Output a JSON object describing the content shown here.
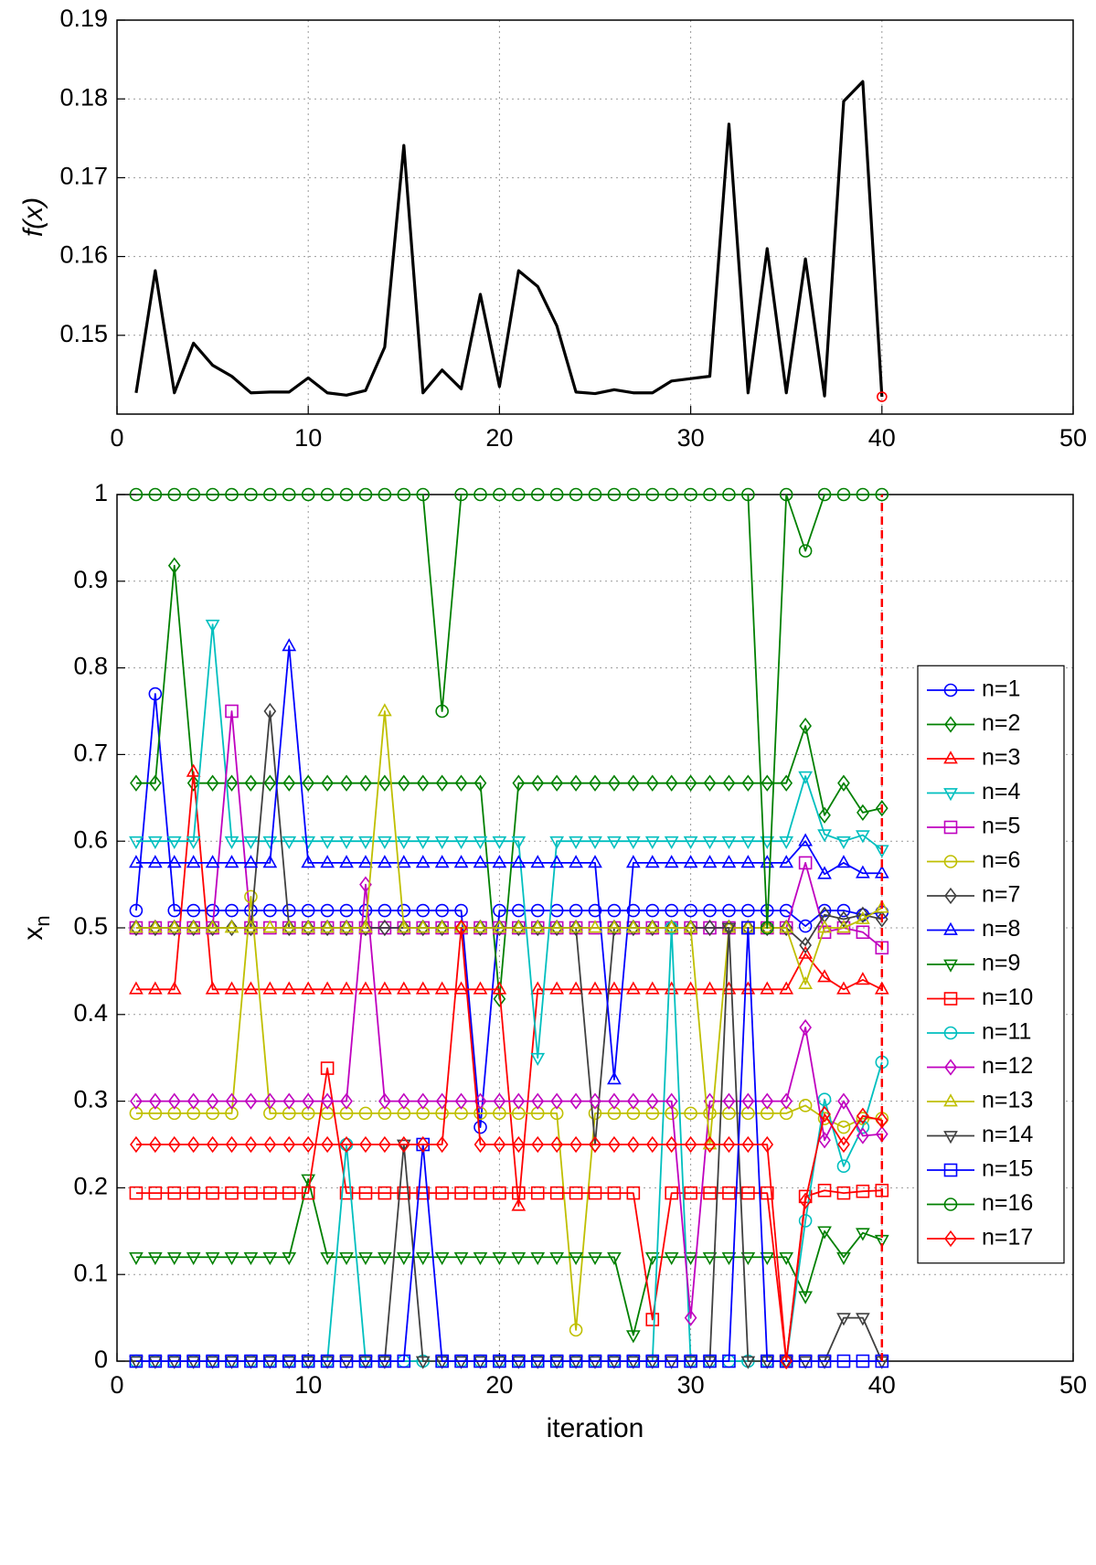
{
  "chart_data": [
    {
      "type": "line",
      "ylabel": "f(x)",
      "x": [
        1,
        2,
        3,
        4,
        5,
        6,
        7,
        8,
        9,
        10,
        11,
        12,
        13,
        14,
        15,
        16,
        17,
        18,
        19,
        20,
        21,
        22,
        23,
        24,
        25,
        26,
        27,
        28,
        29,
        30,
        31,
        32,
        33,
        34,
        35,
        36,
        37,
        38,
        39,
        40
      ],
      "series": [
        {
          "color": "#000000",
          "values": [
            0.1427,
            0.1582,
            0.1427,
            0.149,
            0.1462,
            0.1448,
            0.1427,
            0.1428,
            0.1428,
            0.1446,
            0.1427,
            0.1424,
            0.143,
            0.1485,
            0.1741,
            0.1427,
            0.1456,
            0.1432,
            0.1552,
            0.1435,
            0.1582,
            0.1562,
            0.1512,
            0.1428,
            0.1426,
            0.1431,
            0.1427,
            0.1427,
            0.1442,
            0.1445,
            0.1448,
            0.1768,
            0.1427,
            0.161,
            0.1427,
            0.1597,
            0.1423,
            0.1797,
            0.1822,
            0.1422
          ]
        }
      ],
      "best": {
        "x": 40,
        "value": 0.1422,
        "color": "#ff0000"
      },
      "xlim": [
        0,
        50
      ],
      "xticks": [
        0,
        10,
        20,
        30,
        40,
        50
      ],
      "ylim": [
        0.14,
        0.19
      ],
      "yticks": [
        0.15,
        0.16,
        0.17,
        0.18,
        0.19
      ],
      "grid": true
    },
    {
      "type": "line",
      "xlabel": "iteration",
      "ylabel": "x",
      "ylabel_sub": "n",
      "x": [
        1,
        2,
        3,
        4,
        5,
        6,
        7,
        8,
        9,
        10,
        11,
        12,
        13,
        14,
        15,
        16,
        17,
        18,
        19,
        20,
        21,
        22,
        23,
        24,
        25,
        26,
        27,
        28,
        29,
        30,
        31,
        32,
        33,
        34,
        35,
        36,
        37,
        38,
        39,
        40
      ],
      "series": [
        {
          "name": "n=1",
          "color": "#0000ff",
          "marker": "o",
          "values": [
            0.52,
            0.77,
            0.52,
            0.52,
            0.52,
            0.52,
            0.52,
            0.52,
            0.52,
            0.52,
            0.52,
            0.52,
            0.52,
            0.52,
            0.52,
            0.52,
            0.52,
            0.52,
            0.27,
            0.52,
            0.52,
            0.52,
            0.52,
            0.52,
            0.52,
            0.52,
            0.52,
            0.52,
            0.52,
            0.52,
            0.52,
            0.52,
            0.52,
            0.52,
            0.52,
            0.502,
            0.52,
            0.52,
            0.515,
            0.518
          ]
        },
        {
          "name": "n=2",
          "color": "#008000",
          "marker": "d",
          "values": [
            0.667,
            0.667,
            0.918,
            0.667,
            0.667,
            0.667,
            0.667,
            0.667,
            0.667,
            0.667,
            0.667,
            0.667,
            0.667,
            0.667,
            0.667,
            0.667,
            0.667,
            0.667,
            0.667,
            0.418,
            0.667,
            0.667,
            0.667,
            0.667,
            0.667,
            0.667,
            0.667,
            0.667,
            0.667,
            0.667,
            0.667,
            0.667,
            0.667,
            0.667,
            0.667,
            0.733,
            0.63,
            0.667,
            0.633,
            0.638
          ]
        },
        {
          "name": "n=3",
          "color": "#ff0000",
          "marker": "^",
          "values": [
            0.429,
            0.429,
            0.429,
            0.68,
            0.429,
            0.429,
            0.429,
            0.429,
            0.429,
            0.429,
            0.429,
            0.429,
            0.429,
            0.429,
            0.429,
            0.429,
            0.429,
            0.429,
            0.429,
            0.429,
            0.179,
            0.429,
            0.429,
            0.429,
            0.429,
            0.429,
            0.429,
            0.429,
            0.429,
            0.429,
            0.429,
            0.429,
            0.429,
            0.429,
            0.429,
            0.47,
            0.443,
            0.429,
            0.44,
            0.429
          ]
        },
        {
          "name": "n=4",
          "color": "#00bfbf",
          "marker": "v",
          "values": [
            0.6,
            0.6,
            0.6,
            0.6,
            0.85,
            0.6,
            0.6,
            0.6,
            0.6,
            0.6,
            0.6,
            0.6,
            0.6,
            0.6,
            0.6,
            0.6,
            0.6,
            0.6,
            0.6,
            0.6,
            0.6,
            0.35,
            0.6,
            0.6,
            0.6,
            0.6,
            0.6,
            0.6,
            0.6,
            0.6,
            0.6,
            0.6,
            0.6,
            0.6,
            0.6,
            0.675,
            0.608,
            0.6,
            0.607,
            0.59
          ]
        },
        {
          "name": "n=5",
          "color": "#bf00bf",
          "marker": "s",
          "values": [
            0.5,
            0.5,
            0.5,
            0.5,
            0.5,
            0.75,
            0.5,
            0.5,
            0.5,
            0.5,
            0.5,
            0.5,
            0.5,
            0.5,
            0.5,
            0.5,
            0.5,
            0.5,
            0.5,
            0.5,
            0.5,
            0.5,
            0.5,
            0.5,
            0.5,
            0.5,
            0.5,
            0.5,
            0.5,
            0.5,
            0.5,
            0.5,
            0.5,
            0.5,
            0.5,
            0.575,
            0.495,
            0.5,
            0.495,
            0.477
          ]
        },
        {
          "name": "n=6",
          "color": "#bfbf00",
          "marker": "o",
          "values": [
            0.286,
            0.286,
            0.286,
            0.286,
            0.286,
            0.286,
            0.536,
            0.286,
            0.286,
            0.286,
            0.286,
            0.286,
            0.286,
            0.286,
            0.286,
            0.286,
            0.286,
            0.286,
            0.286,
            0.286,
            0.286,
            0.286,
            0.286,
            0.036,
            0.286,
            0.286,
            0.286,
            0.286,
            0.286,
            0.286,
            0.286,
            0.286,
            0.286,
            0.286,
            0.286,
            0.295,
            0.28,
            0.27,
            0.28,
            0.28
          ]
        },
        {
          "name": "n=7",
          "color": "#404040",
          "marker": "d",
          "values": [
            0.5,
            0.5,
            0.5,
            0.5,
            0.5,
            0.5,
            0.5,
            0.75,
            0.5,
            0.5,
            0.5,
            0.5,
            0.5,
            0.5,
            0.5,
            0.5,
            0.5,
            0.5,
            0.5,
            0.5,
            0.5,
            0.5,
            0.5,
            0.5,
            0.25,
            0.5,
            0.5,
            0.5,
            0.5,
            0.5,
            0.5,
            0.5,
            0.5,
            0.5,
            0.5,
            0.48,
            0.515,
            0.51,
            0.515,
            0.51
          ]
        },
        {
          "name": "n=8",
          "color": "#0000ff",
          "marker": "^",
          "values": [
            0.575,
            0.575,
            0.575,
            0.575,
            0.575,
            0.575,
            0.575,
            0.575,
            0.825,
            0.575,
            0.575,
            0.575,
            0.575,
            0.575,
            0.575,
            0.575,
            0.575,
            0.575,
            0.575,
            0.575,
            0.575,
            0.575,
            0.575,
            0.575,
            0.575,
            0.325,
            0.575,
            0.575,
            0.575,
            0.575,
            0.575,
            0.575,
            0.575,
            0.575,
            0.575,
            0.6,
            0.562,
            0.575,
            0.563,
            0.563
          ]
        },
        {
          "name": "n=9",
          "color": "#008000",
          "marker": "v",
          "values": [
            0.12,
            0.12,
            0.12,
            0.12,
            0.12,
            0.12,
            0.12,
            0.12,
            0.12,
            0.21,
            0.12,
            0.12,
            0.12,
            0.12,
            0.12,
            0.12,
            0.12,
            0.12,
            0.12,
            0.12,
            0.12,
            0.12,
            0.12,
            0.12,
            0.12,
            0.12,
            0.03,
            0.12,
            0.12,
            0.12,
            0.12,
            0.12,
            0.12,
            0.12,
            0.12,
            0.075,
            0.15,
            0.12,
            0.148,
            0.14
          ]
        },
        {
          "name": "n=10",
          "color": "#ff0000",
          "marker": "s",
          "values": [
            0.194,
            0.194,
            0.194,
            0.194,
            0.194,
            0.194,
            0.194,
            0.194,
            0.194,
            0.194,
            0.338,
            0.194,
            0.194,
            0.194,
            0.194,
            0.194,
            0.194,
            0.194,
            0.194,
            0.194,
            0.194,
            0.194,
            0.194,
            0.194,
            0.194,
            0.194,
            0.194,
            0.048,
            0.194,
            0.194,
            0.194,
            0.194,
            0.194,
            0.194,
            0,
            0.19,
            0.197,
            0.194,
            0.196,
            0.197
          ]
        },
        {
          "name": "n=11",
          "color": "#00bfbf",
          "marker": "o",
          "values": [
            0,
            0,
            0,
            0,
            0,
            0,
            0,
            0,
            0,
            0,
            0,
            0.25,
            0,
            0,
            0,
            0,
            0,
            0,
            0,
            0,
            0,
            0,
            0,
            0,
            0,
            0,
            0,
            0,
            0.5,
            0,
            0,
            0,
            0,
            0,
            0,
            0.162,
            0.302,
            0.225,
            0.27,
            0.345
          ]
        },
        {
          "name": "n=12",
          "color": "#bf00bf",
          "marker": "d",
          "values": [
            0.3,
            0.3,
            0.3,
            0.3,
            0.3,
            0.3,
            0.3,
            0.3,
            0.3,
            0.3,
            0.3,
            0.3,
            0.55,
            0.3,
            0.3,
            0.3,
            0.3,
            0.3,
            0.3,
            0.3,
            0.3,
            0.3,
            0.3,
            0.3,
            0.3,
            0.3,
            0.3,
            0.3,
            0.3,
            0.05,
            0.3,
            0.3,
            0.3,
            0.3,
            0.3,
            0.385,
            0.255,
            0.3,
            0.26,
            0.262
          ]
        },
        {
          "name": "n=13",
          "color": "#bfbf00",
          "marker": "^",
          "values": [
            0.5,
            0.5,
            0.5,
            0.5,
            0.5,
            0.5,
            0.5,
            0.5,
            0.5,
            0.5,
            0.5,
            0.5,
            0.5,
            0.75,
            0.5,
            0.5,
            0.5,
            0.5,
            0.5,
            0.5,
            0.5,
            0.5,
            0.5,
            0.5,
            0.5,
            0.5,
            0.5,
            0.5,
            0.5,
            0.5,
            0.25,
            0.5,
            0.5,
            0.5,
            0.5,
            0.435,
            0.5,
            0.5,
            0.51,
            0.523
          ]
        },
        {
          "name": "n=14",
          "color": "#404040",
          "marker": "v",
          "values": [
            0,
            0,
            0,
            0,
            0,
            0,
            0,
            0,
            0,
            0,
            0,
            0,
            0,
            0,
            0.25,
            0,
            0,
            0,
            0,
            0,
            0,
            0,
            0,
            0,
            0,
            0,
            0,
            0,
            0,
            0,
            0,
            0.5,
            0,
            0,
            0,
            0,
            0,
            0.05,
            0.05,
            0
          ]
        },
        {
          "name": "n=15",
          "color": "#0000ff",
          "marker": "s",
          "values": [
            0,
            0,
            0,
            0,
            0,
            0,
            0,
            0,
            0,
            0,
            0,
            0,
            0,
            0,
            0,
            0.25,
            0,
            0,
            0,
            0,
            0,
            0,
            0,
            0,
            0,
            0,
            0,
            0,
            0,
            0,
            0,
            0,
            0.5,
            0,
            0,
            0,
            0,
            0,
            0,
            0
          ]
        },
        {
          "name": "n=16",
          "color": "#008000",
          "marker": "o",
          "values": [
            1,
            1,
            1,
            1,
            1,
            1,
            1,
            1,
            1,
            1,
            1,
            1,
            1,
            1,
            1,
            1,
            0.75,
            1,
            1,
            1,
            1,
            1,
            1,
            1,
            1,
            1,
            1,
            1,
            1,
            1,
            1,
            1,
            1,
            0.5,
            1,
            0.935,
            1,
            1,
            1,
            1
          ]
        },
        {
          "name": "n=17",
          "color": "#ff0000",
          "marker": "d",
          "values": [
            0.25,
            0.25,
            0.25,
            0.25,
            0.25,
            0.25,
            0.25,
            0.25,
            0.25,
            0.25,
            0.25,
            0.25,
            0.25,
            0.25,
            0.25,
            0.25,
            0.25,
            0.5,
            0.25,
            0.25,
            0.25,
            0.25,
            0.25,
            0.25,
            0.25,
            0.25,
            0.25,
            0.25,
            0.25,
            0.25,
            0.25,
            0.25,
            0.25,
            0.25,
            0,
            0.185,
            0.285,
            0.25,
            0.283,
            0.278
          ]
        }
      ],
      "vline": {
        "x": 40,
        "color": "#ff0000"
      },
      "xlim": [
        0,
        50
      ],
      "xticks": [
        0,
        10,
        20,
        30,
        40,
        50
      ],
      "ylim": [
        0,
        1
      ],
      "yticks": [
        0,
        0.1,
        0.2,
        0.3,
        0.4,
        0.5,
        0.6,
        0.7,
        0.8,
        0.9,
        1
      ],
      "grid": true,
      "legend": "east"
    }
  ]
}
